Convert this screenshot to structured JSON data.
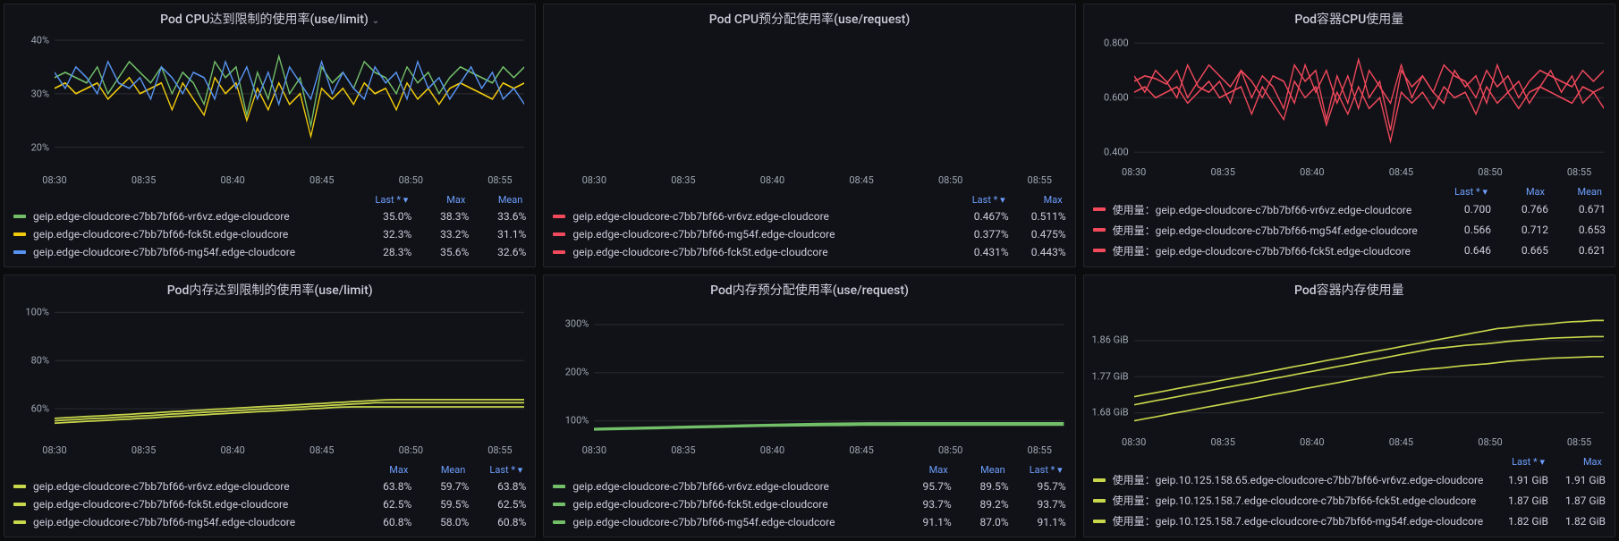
{
  "xticks": [
    "08:30",
    "08:35",
    "08:40",
    "08:45",
    "08:50",
    "08:55"
  ],
  "colors": {
    "green": "#73bf69",
    "yellow": "#f2cc0c",
    "blue": "#5794f2",
    "red": "#f2495c",
    "yellowgreen": "#c8d64b"
  },
  "panels": [
    {
      "id": "cpu-limit",
      "title": "Pod CPU达到限制的使用率(use/limit)",
      "has_dropdown": true,
      "ylim": [
        15,
        42
      ],
      "yticks": [
        {
          "v": 20,
          "l": "20%"
        },
        {
          "v": 30,
          "l": "30%"
        },
        {
          "v": 40,
          "l": "40%"
        }
      ],
      "chart_type": "line",
      "header_cols": [
        "Last *",
        "Max",
        "Mean"
      ],
      "header_sort_col": 0,
      "series": [
        {
          "color": "green",
          "label": "geip.edge-cloudcore-c7bb7bf66-vr6vz.edge-cloudcore",
          "values": [
            "35.0%",
            "38.3%",
            "33.6%"
          ],
          "data": [
            33,
            34,
            33,
            32,
            35,
            30,
            33,
            36,
            34,
            32,
            35,
            30,
            34,
            32,
            28,
            36,
            33,
            35,
            26,
            34,
            29,
            37,
            30,
            33,
            24,
            35,
            32,
            34,
            31,
            36,
            34,
            33,
            30,
            35,
            32,
            34,
            30,
            33,
            35,
            34,
            33,
            32,
            35,
            33,
            35
          ]
        },
        {
          "color": "yellow",
          "label": "geip.edge-cloudcore-c7bb7bf66-fck5t.edge-cloudcore",
          "values": [
            "32.3%",
            "33.2%",
            "31.1%"
          ],
          "data": [
            31,
            32,
            30,
            31,
            32,
            29,
            31,
            33,
            30,
            31,
            32,
            27,
            32,
            29,
            26,
            33,
            30,
            32,
            25,
            31,
            27,
            32,
            28,
            30,
            22,
            31,
            29,
            31,
            28,
            32,
            30,
            31,
            27,
            32,
            29,
            31,
            28,
            31,
            32,
            31,
            30,
            29,
            32,
            31,
            32
          ]
        },
        {
          "color": "blue",
          "label": "geip.edge-cloudcore-c7bb7bf66-mg54f.edge-cloudcore",
          "values": [
            "28.3%",
            "35.6%",
            "32.6%"
          ],
          "data": [
            34,
            31,
            35,
            33,
            30,
            36,
            32,
            31,
            33,
            29,
            35,
            33,
            30,
            34,
            33,
            29,
            36,
            31,
            35,
            29,
            34,
            28,
            35,
            32,
            29,
            36,
            30,
            34,
            31,
            29,
            35,
            32,
            34,
            29,
            36,
            31,
            33,
            29,
            32,
            35,
            31,
            34,
            29,
            31,
            28
          ]
        }
      ]
    },
    {
      "id": "cpu-request",
      "title": "Pod CPU预分配使用率(use/request)",
      "has_dropdown": false,
      "ylim": [
        0,
        100
      ],
      "yticks": [],
      "chart_type": "line",
      "header_cols": [
        "Last *",
        "Max"
      ],
      "header_sort_col": 0,
      "series": [
        {
          "color": "red",
          "label": "geip.edge-cloudcore-c7bb7bf66-vr6vz.edge-cloudcore",
          "values": [
            "0.467%",
            "0.511%"
          ],
          "data": []
        },
        {
          "color": "red",
          "label": "geip.edge-cloudcore-c7bb7bf66-mg54f.edge-cloudcore",
          "values": [
            "0.377%",
            "0.475%"
          ],
          "data": []
        },
        {
          "color": "red",
          "label": "geip.edge-cloudcore-c7bb7bf66-fck5t.edge-cloudcore",
          "values": [
            "0.431%",
            "0.443%"
          ],
          "data": []
        }
      ]
    },
    {
      "id": "cpu-usage",
      "title": "Pod容器CPU使用量",
      "has_dropdown": false,
      "ylim": [
        0.35,
        0.85
      ],
      "yticks": [
        {
          "v": 0.4,
          "l": "0.400"
        },
        {
          "v": 0.6,
          "l": "0.600"
        },
        {
          "v": 0.8,
          "l": "0.800"
        }
      ],
      "chart_type": "line",
      "header_cols": [
        "Last *",
        "Max",
        "Mean"
      ],
      "header_sort_col": 0,
      "series": [
        {
          "color": "red",
          "label": "使用量：geip.edge-cloudcore-c7bb7bf66-vr6vz.edge-cloudcore",
          "values": [
            "0.700",
            "0.766",
            "0.671"
          ],
          "data": [
            0.66,
            0.68,
            0.67,
            0.65,
            0.7,
            0.6,
            0.66,
            0.72,
            0.68,
            0.64,
            0.7,
            0.6,
            0.68,
            0.64,
            0.56,
            0.72,
            0.66,
            0.7,
            0.52,
            0.68,
            0.58,
            0.74,
            0.6,
            0.66,
            0.48,
            0.7,
            0.64,
            0.68,
            0.62,
            0.72,
            0.68,
            0.66,
            0.6,
            0.7,
            0.64,
            0.68,
            0.6,
            0.66,
            0.7,
            0.68,
            0.66,
            0.64,
            0.7,
            0.66,
            0.7
          ]
        },
        {
          "color": "red",
          "label": "使用量：geip.edge-cloudcore-c7bb7bf66-mg54f.edge-cloudcore",
          "values": [
            "0.566",
            "0.712",
            "0.653"
          ],
          "data": [
            0.68,
            0.62,
            0.7,
            0.66,
            0.6,
            0.72,
            0.64,
            0.62,
            0.66,
            0.58,
            0.7,
            0.66,
            0.6,
            0.68,
            0.66,
            0.58,
            0.72,
            0.62,
            0.7,
            0.58,
            0.68,
            0.56,
            0.7,
            0.64,
            0.58,
            0.72,
            0.6,
            0.68,
            0.62,
            0.58,
            0.7,
            0.64,
            0.68,
            0.58,
            0.72,
            0.62,
            0.66,
            0.58,
            0.64,
            0.7,
            0.62,
            0.68,
            0.58,
            0.62,
            0.56
          ]
        },
        {
          "color": "red",
          "label": "使用量：geip.edge-cloudcore-c7bb7bf66-fck5t.edge-cloudcore",
          "values": [
            "0.646",
            "0.665",
            "0.621"
          ],
          "data": [
            0.62,
            0.64,
            0.6,
            0.62,
            0.64,
            0.58,
            0.62,
            0.66,
            0.6,
            0.62,
            0.64,
            0.54,
            0.64,
            0.58,
            0.52,
            0.66,
            0.6,
            0.64,
            0.5,
            0.62,
            0.54,
            0.64,
            0.56,
            0.6,
            0.44,
            0.62,
            0.58,
            0.62,
            0.56,
            0.64,
            0.6,
            0.62,
            0.54,
            0.64,
            0.58,
            0.62,
            0.56,
            0.62,
            0.64,
            0.62,
            0.6,
            0.58,
            0.64,
            0.62,
            0.64
          ]
        }
      ]
    },
    {
      "id": "mem-limit",
      "title": "Pod内存达到限制的使用率(use/limit)",
      "has_dropdown": false,
      "ylim": [
        45,
        105
      ],
      "yticks": [
        {
          "v": 60,
          "l": "60%"
        },
        {
          "v": 80,
          "l": "80%"
        },
        {
          "v": 100,
          "l": "100%"
        }
      ],
      "chart_type": "line",
      "header_cols": [
        "Max",
        "Mean",
        "Last *"
      ],
      "header_sort_col": 2,
      "series": [
        {
          "color": "yellowgreen",
          "label": "geip.edge-cloudcore-c7bb7bf66-vr6vz.edge-cloudcore",
          "values": [
            "63.8%",
            "59.7%",
            "63.8%"
          ],
          "data": [
            56,
            56.3,
            56.5,
            56.8,
            57,
            57.2,
            57.5,
            57.7,
            58,
            58.2,
            58.5,
            58.8,
            59,
            59.3,
            59.5,
            59.8,
            60,
            60.3,
            60.5,
            60.8,
            61,
            61.2,
            61.5,
            61.7,
            62,
            62.2,
            62.5,
            62.7,
            63,
            63.2,
            63.5,
            63.7,
            63.8,
            63.8,
            63.8,
            63.8,
            63.8,
            63.8,
            63.8,
            63.8,
            63.8,
            63.8,
            63.8,
            63.8,
            63.8
          ]
        },
        {
          "color": "yellowgreen",
          "label": "geip.edge-cloudcore-c7bb7bf66-fck5t.edge-cloudcore",
          "values": [
            "62.5%",
            "59.5%",
            "62.5%"
          ],
          "data": [
            55,
            55.3,
            55.5,
            55.8,
            56,
            56.2,
            56.5,
            56.7,
            57,
            57.2,
            57.5,
            57.8,
            58,
            58.3,
            58.5,
            58.8,
            59,
            59.3,
            59.5,
            59.8,
            60,
            60.2,
            60.5,
            60.7,
            61,
            61.2,
            61.5,
            61.7,
            62,
            62.2,
            62.5,
            62.5,
            62.5,
            62.5,
            62.5,
            62.5,
            62.5,
            62.5,
            62.5,
            62.5,
            62.5,
            62.5,
            62.5,
            62.5,
            62.5
          ]
        },
        {
          "color": "yellowgreen",
          "label": "geip.edge-cloudcore-c7bb7bf66-mg54f.edge-cloudcore",
          "values": [
            "60.8%",
            "58.0%",
            "60.8%"
          ],
          "data": [
            54,
            54.3,
            54.5,
            54.8,
            55,
            55.2,
            55.5,
            55.7,
            56,
            56.2,
            56.5,
            56.8,
            57,
            57.3,
            57.5,
            57.8,
            58,
            58.3,
            58.5,
            58.8,
            59,
            59.2,
            59.5,
            59.7,
            60,
            60.2,
            60.5,
            60.7,
            60.8,
            60.8,
            60.8,
            60.8,
            60.8,
            60.8,
            60.8,
            60.8,
            60.8,
            60.8,
            60.8,
            60.8,
            60.8,
            60.8,
            60.8,
            60.8,
            60.8
          ]
        }
      ]
    },
    {
      "id": "mem-request",
      "title": "Pod内存预分配使用率(use/request)",
      "has_dropdown": false,
      "ylim": [
        50,
        350
      ],
      "yticks": [
        {
          "v": 100,
          "l": "100%"
        },
        {
          "v": 200,
          "l": "200%"
        },
        {
          "v": 300,
          "l": "300%"
        }
      ],
      "chart_type": "line",
      "header_cols": [
        "Max",
        "Mean",
        "Last *"
      ],
      "header_sort_col": 2,
      "series": [
        {
          "color": "green",
          "label": "geip.edge-cloudcore-c7bb7bf66-vr6vz.edge-cloudcore",
          "values": [
            "95.7%",
            "89.5%",
            "95.7%"
          ],
          "data": [
            84,
            84.5,
            85,
            85.5,
            86,
            86.5,
            87,
            87.5,
            88,
            88.5,
            89,
            89.5,
            90,
            90.5,
            91,
            91.5,
            92,
            92.5,
            93,
            93.5,
            94,
            94.3,
            94.5,
            94.8,
            95,
            95.2,
            95.4,
            95.5,
            95.6,
            95.7,
            95.7,
            95.7,
            95.7,
            95.7,
            95.7,
            95.7,
            95.7,
            95.7,
            95.7,
            95.7,
            95.7,
            95.7,
            95.7,
            95.7,
            95.7
          ]
        },
        {
          "color": "green",
          "label": "geip.edge-cloudcore-c7bb7bf66-fck5t.edge-cloudcore",
          "values": [
            "93.7%",
            "89.2%",
            "93.7%"
          ],
          "data": [
            83,
            83.5,
            84,
            84.5,
            85,
            85.5,
            86,
            86.5,
            87,
            87.5,
            88,
            88.5,
            89,
            89.5,
            90,
            90.5,
            91,
            91.5,
            92,
            92.3,
            92.5,
            92.8,
            93,
            93.2,
            93.4,
            93.5,
            93.6,
            93.7,
            93.7,
            93.7,
            93.7,
            93.7,
            93.7,
            93.7,
            93.7,
            93.7,
            93.7,
            93.7,
            93.7,
            93.7,
            93.7,
            93.7,
            93.7,
            93.7,
            93.7
          ]
        },
        {
          "color": "green",
          "label": "geip.edge-cloudcore-c7bb7bf66-mg54f.edge-cloudcore",
          "values": [
            "91.1%",
            "87.0%",
            "91.1%"
          ],
          "data": [
            81,
            81.5,
            82,
            82.5,
            83,
            83.5,
            84,
            84.5,
            85,
            85.5,
            86,
            86.5,
            87,
            87.5,
            88,
            88.5,
            89,
            89.3,
            89.5,
            89.8,
            90,
            90.2,
            90.4,
            90.6,
            90.8,
            90.9,
            91,
            91.1,
            91.1,
            91.1,
            91.1,
            91.1,
            91.1,
            91.1,
            91.1,
            91.1,
            91.1,
            91.1,
            91.1,
            91.1,
            91.1,
            91.1,
            91.1,
            91.1,
            91.1
          ]
        }
      ]
    },
    {
      "id": "mem-usage",
      "title": "Pod容器内存使用量",
      "has_dropdown": false,
      "ylim": [
        1.62,
        1.96
      ],
      "yticks": [
        {
          "v": 1.68,
          "l": "1.68 GiB"
        },
        {
          "v": 1.77,
          "l": "1.77 GiB"
        },
        {
          "v": 1.86,
          "l": "1.86 GiB"
        }
      ],
      "chart_type": "line",
      "header_cols": [
        "Last *",
        "Max"
      ],
      "header_sort_col": 0,
      "series": [
        {
          "color": "yellowgreen",
          "label": "使用量：geip.10.125.158.65.edge-cloudcore-c7bb7bf66-vr6vz.edge-cloudcore",
          "values": [
            "1.91 GiB",
            "1.91 GiB"
          ],
          "data": [
            1.72,
            1.725,
            1.73,
            1.735,
            1.74,
            1.745,
            1.75,
            1.755,
            1.76,
            1.765,
            1.77,
            1.775,
            1.78,
            1.785,
            1.79,
            1.795,
            1.8,
            1.805,
            1.81,
            1.815,
            1.82,
            1.825,
            1.83,
            1.835,
            1.84,
            1.845,
            1.85,
            1.855,
            1.86,
            1.865,
            1.87,
            1.875,
            1.88,
            1.885,
            1.89,
            1.892,
            1.895,
            1.898,
            1.9,
            1.902,
            1.905,
            1.907,
            1.908,
            1.91,
            1.91
          ]
        },
        {
          "color": "yellowgreen",
          "label": "使用量：geip.10.125.158.7.edge-cloudcore-c7bb7bf66-fck5t.edge-cloudcore",
          "values": [
            "1.87 GiB",
            "1.87 GiB"
          ],
          "data": [
            1.7,
            1.705,
            1.71,
            1.715,
            1.72,
            1.725,
            1.73,
            1.735,
            1.74,
            1.745,
            1.75,
            1.755,
            1.76,
            1.765,
            1.77,
            1.775,
            1.78,
            1.785,
            1.79,
            1.795,
            1.8,
            1.805,
            1.81,
            1.815,
            1.82,
            1.825,
            1.83,
            1.835,
            1.84,
            1.842,
            1.845,
            1.848,
            1.85,
            1.852,
            1.855,
            1.858,
            1.86,
            1.862,
            1.864,
            1.866,
            1.867,
            1.868,
            1.869,
            1.87,
            1.87
          ]
        },
        {
          "color": "yellowgreen",
          "label": "使用量：geip.10.125.158.7.edge-cloudcore-c7bb7bf66-mg54f.edge-cloudcore",
          "values": [
            "1.82 GiB",
            "1.82 GiB"
          ],
          "data": [
            1.66,
            1.665,
            1.67,
            1.675,
            1.68,
            1.685,
            1.69,
            1.695,
            1.7,
            1.705,
            1.71,
            1.715,
            1.72,
            1.725,
            1.73,
            1.735,
            1.74,
            1.745,
            1.75,
            1.755,
            1.76,
            1.765,
            1.77,
            1.775,
            1.78,
            1.782,
            1.785,
            1.788,
            1.79,
            1.792,
            1.795,
            1.798,
            1.8,
            1.802,
            1.805,
            1.808,
            1.81,
            1.812,
            1.814,
            1.816,
            1.817,
            1.818,
            1.819,
            1.82,
            1.82
          ]
        }
      ]
    }
  ]
}
